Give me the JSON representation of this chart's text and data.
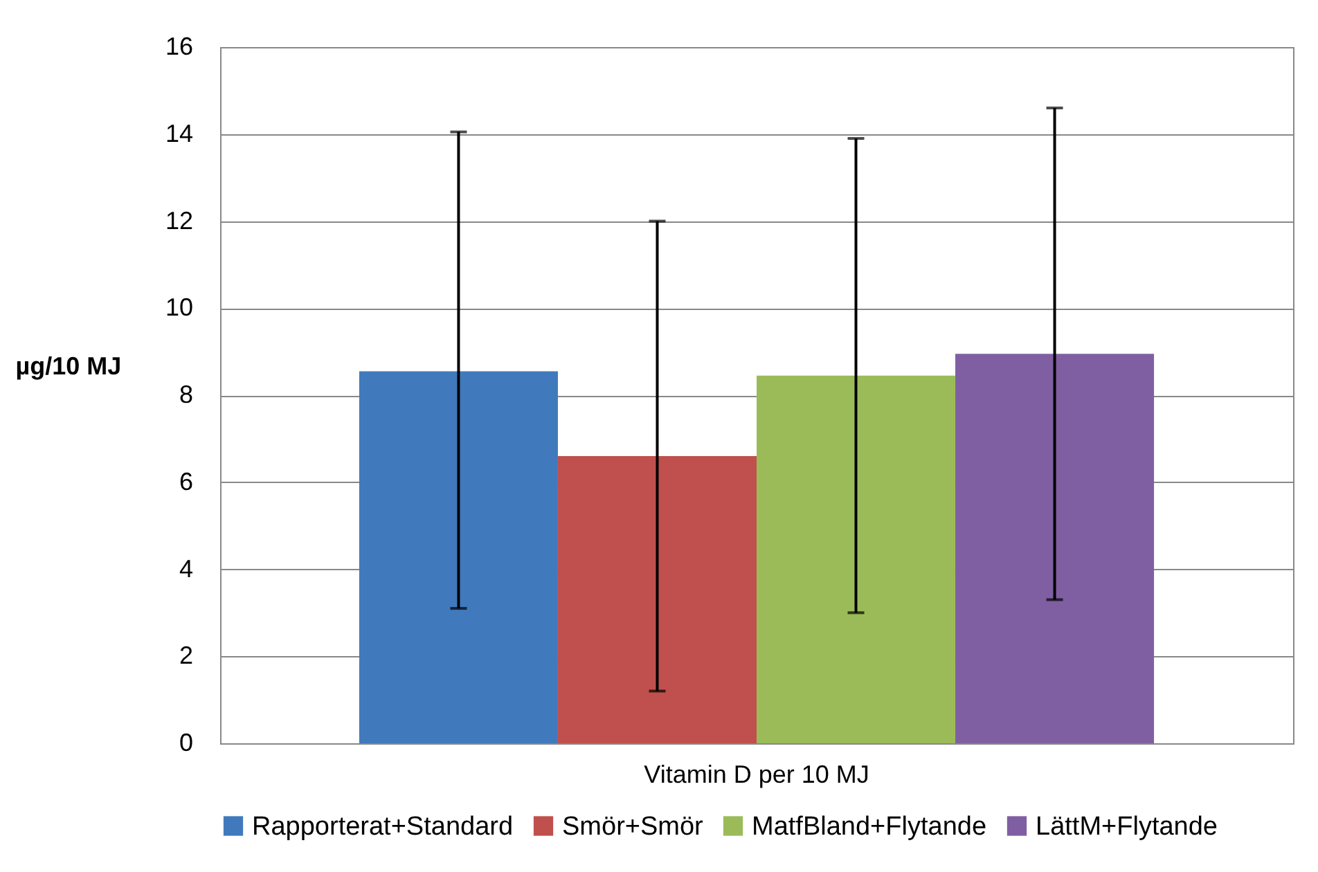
{
  "chart_data": {
    "type": "bar",
    "ylabel": "µg/10 MJ",
    "categories": [
      "Vitamin D per 10 MJ"
    ],
    "series": [
      {
        "name": "Rapporterat+Standard",
        "color": "#4179bd",
        "values": [
          8.55
        ],
        "errors": [
          [
            3.1,
            14.05
          ]
        ]
      },
      {
        "name": "Smör+Smör",
        "color": "#c0504d",
        "values": [
          6.6
        ],
        "errors": [
          [
            1.2,
            12.0
          ]
        ]
      },
      {
        "name": "MatfBland+Flytande",
        "color": "#9bbb59",
        "values": [
          8.45
        ],
        "errors": [
          [
            3.0,
            13.9
          ]
        ]
      },
      {
        "name": "LättM+Flytande",
        "color": "#7f5fa2",
        "values": [
          8.95
        ],
        "errors": [
          [
            3.3,
            14.6
          ]
        ]
      }
    ],
    "ylim": [
      0,
      16
    ],
    "yticks": [
      0,
      2,
      4,
      6,
      8,
      10,
      12,
      14,
      16
    ],
    "grid": "y",
    "legend": "bottom"
  }
}
